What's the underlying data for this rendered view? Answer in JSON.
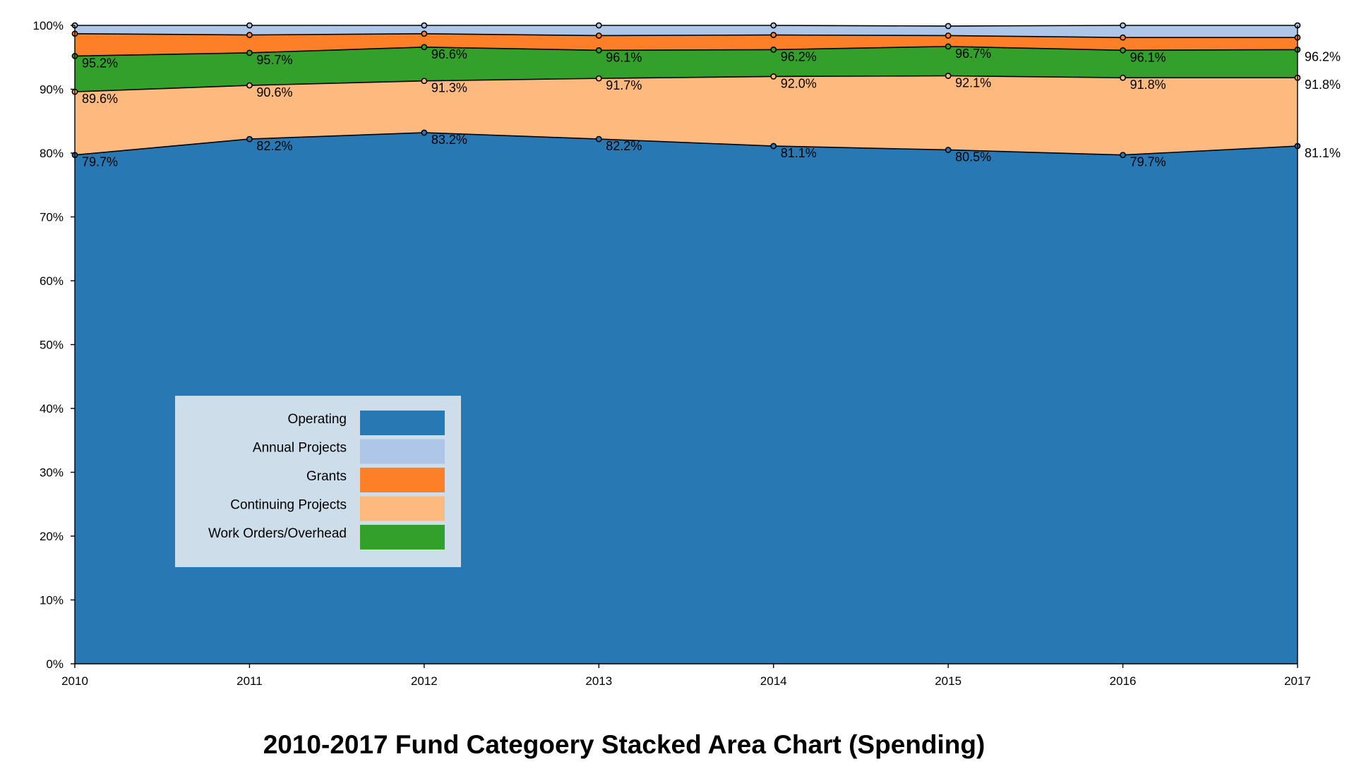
{
  "chart_data": {
    "type": "area",
    "stacked": true,
    "title": "2010-2017 Fund Categoery Stacked Area Chart (Spending)",
    "xlabel": "",
    "ylabel": "",
    "x": [
      "2010",
      "2011",
      "2012",
      "2013",
      "2014",
      "2015",
      "2016",
      "2017"
    ],
    "ylim": [
      0,
      100
    ],
    "yticks": [
      "0%",
      "10%",
      "20%",
      "30%",
      "40%",
      "50%",
      "60%",
      "70%",
      "80%",
      "90%",
      "100%"
    ],
    "grid": false,
    "legend_position": "bottom-left",
    "series": [
      {
        "name": "Operating",
        "color": "#2878b4",
        "values": [
          79.7,
          82.2,
          83.2,
          82.2,
          81.1,
          80.5,
          79.7,
          81.1
        ]
      },
      {
        "name": "Continuing Projects",
        "color": "#fdb97e",
        "values": [
          9.9,
          8.4,
          8.1,
          9.5,
          10.9,
          11.6,
          12.1,
          10.7
        ]
      },
      {
        "name": "Work Orders/Overhead",
        "color": "#33a02c",
        "values": [
          5.6,
          5.1,
          5.3,
          4.4,
          4.2,
          4.6,
          4.3,
          4.4
        ]
      },
      {
        "name": "Grants",
        "color": "#fd7f28",
        "values": [
          3.5,
          2.8,
          2.1,
          2.3,
          2.3,
          1.7,
          2.0,
          1.9
        ]
      },
      {
        "name": "Annual Projects",
        "color": "#aec7e8",
        "values": [
          1.3,
          1.5,
          1.3,
          1.6,
          1.5,
          1.5,
          1.9,
          1.9
        ]
      }
    ],
    "cumulative_labels": [
      [
        "79.7%",
        "82.2%",
        "83.2%",
        "82.2%",
        "81.1%",
        "80.5%",
        "79.7%",
        "81.1%"
      ],
      [
        "89.6%",
        "90.6%",
        "91.3%",
        "91.7%",
        "92.0%",
        "92.1%",
        "91.8%",
        "91.8%"
      ],
      [
        "95.2%",
        "95.7%",
        "96.6%",
        "96.1%",
        "96.2%",
        "96.7%",
        "96.1%",
        "96.2%"
      ]
    ],
    "legend": [
      "Operating",
      "Annual Projects",
      "Grants",
      "Continuing Projects",
      "Work Orders/Overhead"
    ]
  }
}
